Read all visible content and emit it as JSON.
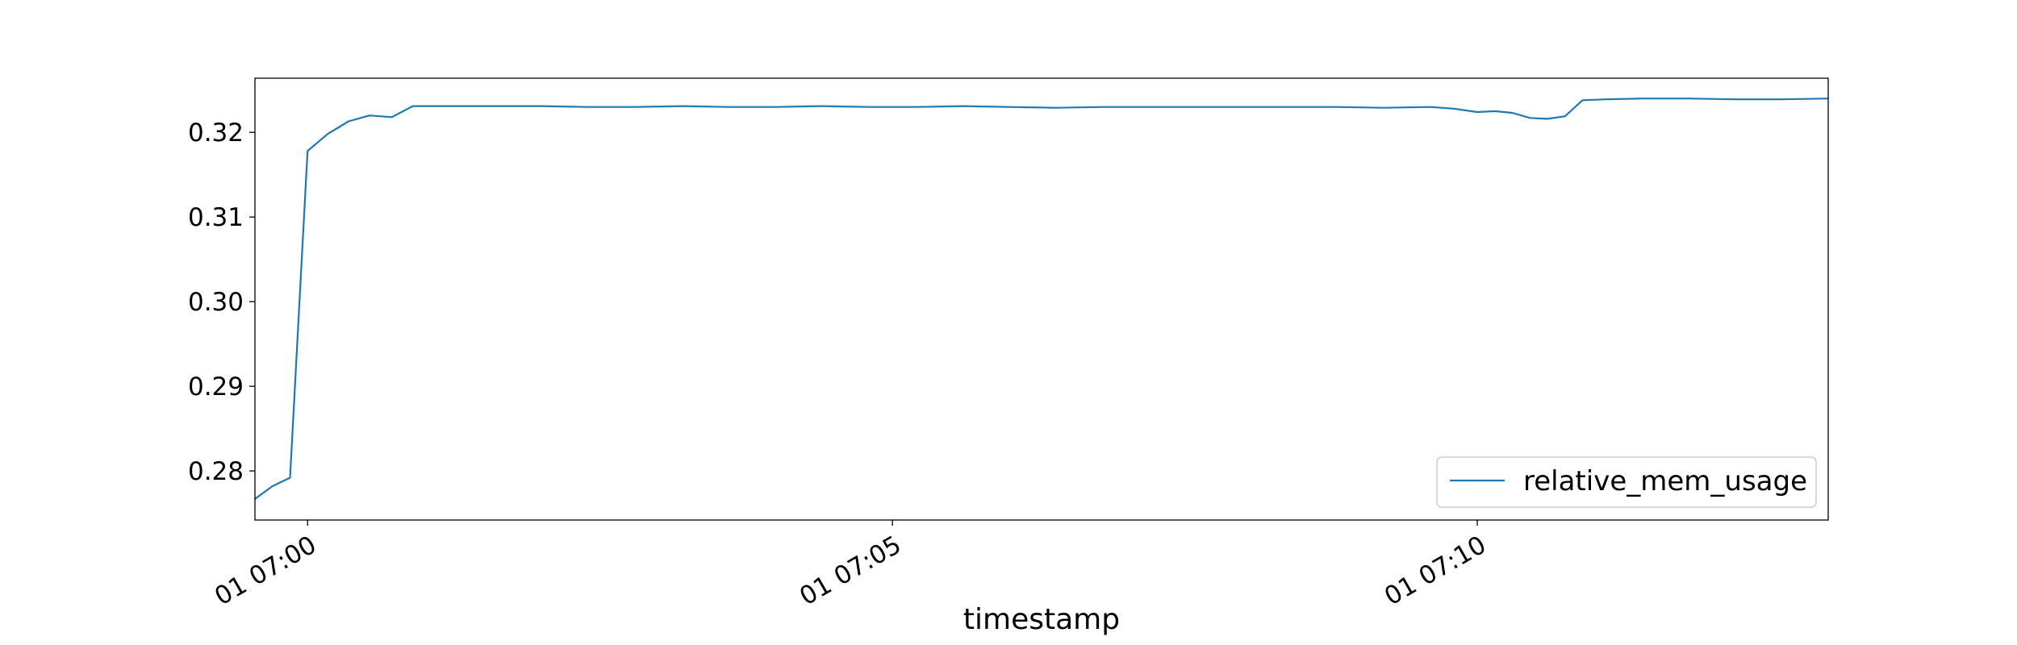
{
  "chart_data": {
    "type": "line",
    "title": "",
    "xlabel": "timestamp",
    "ylabel": "",
    "x_unit": "minute",
    "xlim": [
      "07:00:00",
      "07:13:00"
    ],
    "xlim_minutes": [
      -0.45,
      13.0
    ],
    "ylim": [
      0.2742,
      0.3264
    ],
    "x_ticks": [
      {
        "label": "01 07:00",
        "minute": 0
      },
      {
        "label": "01 07:05",
        "minute": 5
      },
      {
        "label": "01 07:10",
        "minute": 10
      }
    ],
    "y_ticks": [
      {
        "label": "0.28",
        "value": 0.28
      },
      {
        "label": "0.29",
        "value": 0.29
      },
      {
        "label": "0.30",
        "value": 0.3
      },
      {
        "label": "0.31",
        "value": 0.31
      },
      {
        "label": "0.32",
        "value": 0.32
      }
    ],
    "legend": {
      "placement": "lower-right"
    },
    "grid": false,
    "series": [
      {
        "name": "relative_mem_usage",
        "color": "#1f77b4",
        "points": [
          [
            -0.45,
            0.2767
          ],
          [
            -0.3,
            0.2782
          ],
          [
            -0.15,
            0.2792
          ],
          [
            0.0,
            0.3178
          ],
          [
            0.17,
            0.3198
          ],
          [
            0.35,
            0.3213
          ],
          [
            0.53,
            0.322
          ],
          [
            0.72,
            0.3218
          ],
          [
            0.9,
            0.3231
          ],
          [
            1.2,
            0.3231
          ],
          [
            1.6,
            0.3231
          ],
          [
            2.0,
            0.3231
          ],
          [
            2.4,
            0.323
          ],
          [
            2.8,
            0.323
          ],
          [
            3.2,
            0.3231
          ],
          [
            3.6,
            0.323
          ],
          [
            4.0,
            0.323
          ],
          [
            4.4,
            0.3231
          ],
          [
            4.8,
            0.323
          ],
          [
            5.2,
            0.323
          ],
          [
            5.6,
            0.3231
          ],
          [
            6.0,
            0.323
          ],
          [
            6.4,
            0.3229
          ],
          [
            6.8,
            0.323
          ],
          [
            7.2,
            0.323
          ],
          [
            7.6,
            0.323
          ],
          [
            8.0,
            0.323
          ],
          [
            8.4,
            0.323
          ],
          [
            8.8,
            0.323
          ],
          [
            9.2,
            0.3229
          ],
          [
            9.6,
            0.323
          ],
          [
            9.8,
            0.3228
          ],
          [
            10.0,
            0.3224
          ],
          [
            10.15,
            0.3225
          ],
          [
            10.3,
            0.3223
          ],
          [
            10.45,
            0.3217
          ],
          [
            10.6,
            0.3216
          ],
          [
            10.75,
            0.3219
          ],
          [
            10.9,
            0.3238
          ],
          [
            11.1,
            0.3239
          ],
          [
            11.4,
            0.324
          ],
          [
            11.8,
            0.324
          ],
          [
            12.2,
            0.3239
          ],
          [
            12.6,
            0.3239
          ],
          [
            13.0,
            0.324
          ]
        ]
      }
    ]
  }
}
